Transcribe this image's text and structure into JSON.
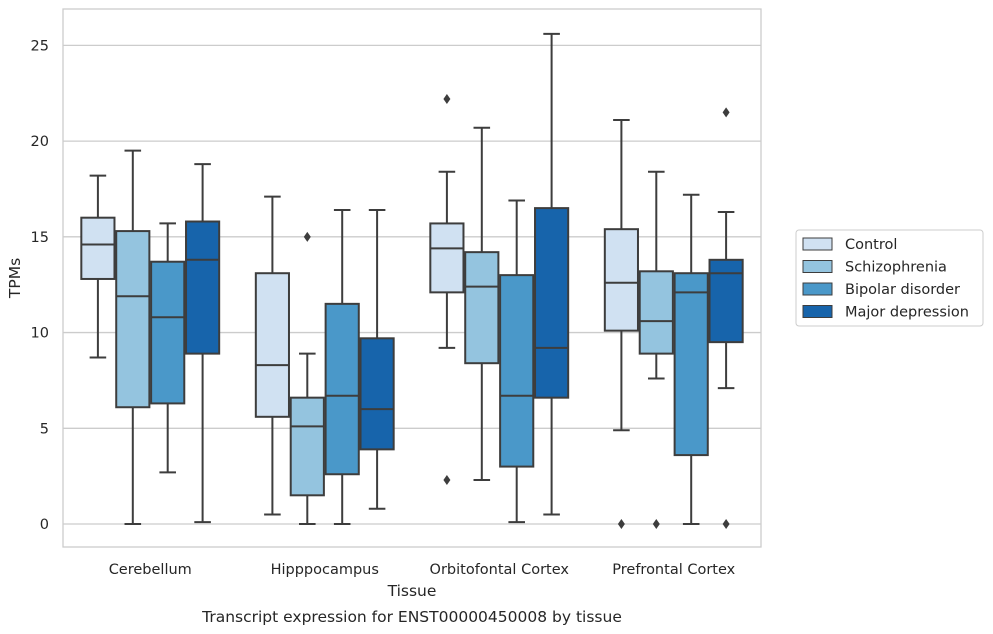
{
  "chart_data": {
    "type": "boxplot",
    "xlabel": "Tissue",
    "ylabel": "TPMs",
    "caption": "Transcript expression for ENST00000450008 by tissue",
    "ylim": [
      -1.2,
      26.9
    ],
    "yticks": [
      0,
      5,
      10,
      15,
      20,
      25
    ],
    "grid": true,
    "legend_position": "right",
    "categories": [
      "Cerebellum",
      "Hipppocampus",
      "Orbitofontal Cortex",
      "Prefrontal Cortex"
    ],
    "series": [
      {
        "name": "Control",
        "color": "#d0e1f2",
        "boxes": [
          {
            "whislo": 8.7,
            "q1": 12.8,
            "med": 14.6,
            "q3": 16.0,
            "whishi": 18.2,
            "fliers": []
          },
          {
            "whislo": 0.5,
            "q1": 5.6,
            "med": 8.3,
            "q3": 13.1,
            "whishi": 17.1,
            "fliers": []
          },
          {
            "whislo": 9.2,
            "q1": 12.1,
            "med": 14.4,
            "q3": 15.7,
            "whishi": 18.4,
            "fliers": [
              2.3,
              22.2
            ]
          },
          {
            "whislo": 4.9,
            "q1": 10.1,
            "med": 12.6,
            "q3": 15.4,
            "whishi": 21.1,
            "fliers": [
              0
            ]
          }
        ]
      },
      {
        "name": "Schizophrenia",
        "color": "#94c4df",
        "boxes": [
          {
            "whislo": 0,
            "q1": 6.1,
            "med": 11.9,
            "q3": 15.3,
            "whishi": 19.5,
            "fliers": []
          },
          {
            "whislo": 0,
            "q1": 1.5,
            "med": 5.1,
            "q3": 6.6,
            "whishi": 8.9,
            "fliers": [
              15.0
            ]
          },
          {
            "whislo": 2.3,
            "q1": 8.4,
            "med": 12.4,
            "q3": 14.2,
            "whishi": 20.7,
            "fliers": []
          },
          {
            "whislo": 7.6,
            "q1": 8.9,
            "med": 10.6,
            "q3": 13.2,
            "whishi": 18.4,
            "fliers": [
              0
            ]
          }
        ]
      },
      {
        "name": "Bipolar disorder",
        "color": "#4a98c9",
        "boxes": [
          {
            "whislo": 2.7,
            "q1": 6.3,
            "med": 10.8,
            "q3": 13.7,
            "whishi": 15.7,
            "fliers": []
          },
          {
            "whislo": 0,
            "q1": 2.6,
            "med": 6.7,
            "q3": 11.5,
            "whishi": 16.4,
            "fliers": []
          },
          {
            "whislo": 0.1,
            "q1": 3.0,
            "med": 6.7,
            "q3": 13.0,
            "whishi": 16.9,
            "fliers": []
          },
          {
            "whislo": 0,
            "q1": 3.6,
            "med": 12.1,
            "q3": 13.1,
            "whishi": 17.2,
            "fliers": []
          }
        ]
      },
      {
        "name": "Major depression",
        "color": "#1764ab",
        "boxes": [
          {
            "whislo": 0.1,
            "q1": 8.9,
            "med": 13.8,
            "q3": 15.8,
            "whishi": 18.8,
            "fliers": []
          },
          {
            "whislo": 0.8,
            "q1": 3.9,
            "med": 6.0,
            "q3": 9.7,
            "whishi": 16.4,
            "fliers": []
          },
          {
            "whislo": 0.5,
            "q1": 6.6,
            "med": 9.2,
            "q3": 16.5,
            "whishi": 25.6,
            "fliers": []
          },
          {
            "whislo": 7.1,
            "q1": 9.5,
            "med": 13.1,
            "q3": 13.8,
            "whishi": 16.3,
            "fliers": [
              0,
              21.5
            ]
          }
        ]
      }
    ]
  }
}
